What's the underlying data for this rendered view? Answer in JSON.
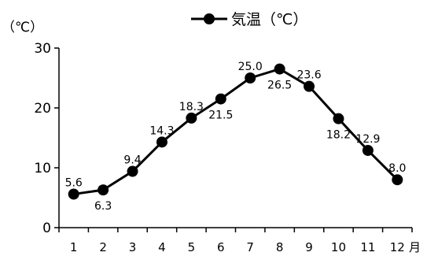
{
  "chart_data": {
    "type": "line",
    "ylabel": "（℃）",
    "x_unit": "月",
    "categories": [
      "1",
      "2",
      "3",
      "4",
      "5",
      "6",
      "7",
      "8",
      "9",
      "10",
      "11",
      "12"
    ],
    "series": [
      {
        "name": "気温（℃）",
        "values": [
          5.6,
          6.3,
          9.4,
          14.3,
          18.3,
          21.5,
          25.0,
          26.5,
          23.6,
          18.2,
          12.9,
          8.0
        ]
      }
    ],
    "data_labels": [
      "5.6",
      "6.3",
      "9.4",
      "14.3",
      "18.3",
      "21.5",
      "25.0",
      "26.5",
      "23.6",
      "18.2",
      "12.9",
      "8.0"
    ],
    "ylim": [
      0,
      30
    ],
    "yticks": [
      "0",
      "10",
      "20",
      "30"
    ],
    "legend": "top-center",
    "grid": false,
    "line_color": "#000000"
  }
}
